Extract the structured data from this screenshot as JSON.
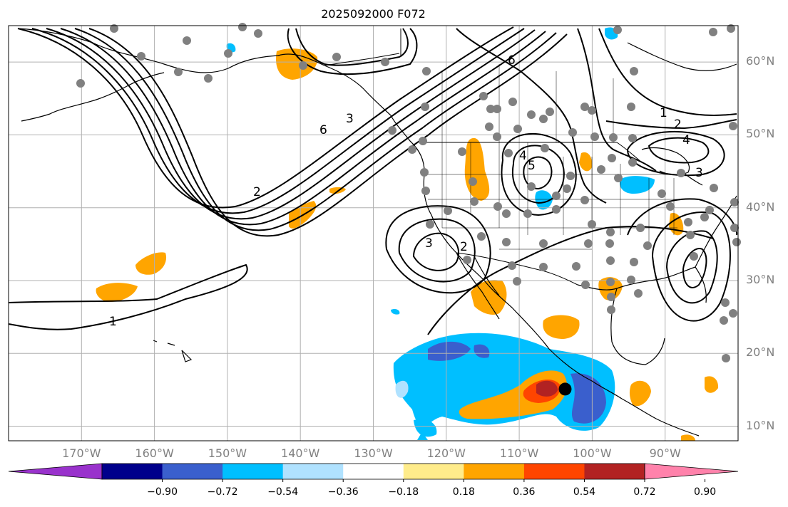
{
  "title": "2025092000 F072",
  "map": {
    "lon_range": [
      -180,
      -80
    ],
    "lat_range": [
      8,
      65
    ],
    "lat_ticks": [
      {
        "value": 60,
        "label": "60°N"
      },
      {
        "value": 50,
        "label": "50°N"
      },
      {
        "value": 40,
        "label": "40°N"
      },
      {
        "value": 30,
        "label": "30°N"
      },
      {
        "value": 20,
        "label": "20°N"
      },
      {
        "value": 10,
        "label": "10°N"
      }
    ],
    "lon_ticks": [
      {
        "value": -170,
        "label": "170°W"
      },
      {
        "value": -160,
        "label": "160°W"
      },
      {
        "value": -150,
        "label": "150°W"
      },
      {
        "value": -140,
        "label": "140°W"
      },
      {
        "value": -130,
        "label": "130°W"
      },
      {
        "value": -120,
        "label": "120°W"
      },
      {
        "value": -110,
        "label": "110°W"
      },
      {
        "value": -100,
        "label": "100°W"
      },
      {
        "value": -90,
        "label": "90°W"
      }
    ],
    "contour_labels": [
      "1",
      "2",
      "3",
      "4",
      "5",
      "6"
    ],
    "storm_marker_lonlat": [
      -104,
      15
    ],
    "colors": {
      "contour": "#000000",
      "station": "#808080",
      "grid": "#b0b0b0"
    }
  },
  "colorbar": {
    "colors": [
      "#9932cc",
      "#00008b",
      "#3a5fcd",
      "#00bfff",
      "#b0e2ff",
      "#ffffff",
      "#ffec8b",
      "#ffa500",
      "#ff4500",
      "#b22222",
      "#ff82ab"
    ],
    "ticks": [
      "−0.90",
      "−0.72",
      "−0.54",
      "−0.36",
      "−0.18",
      "0.18",
      "0.36",
      "0.54",
      "0.72",
      "0.90"
    ]
  }
}
